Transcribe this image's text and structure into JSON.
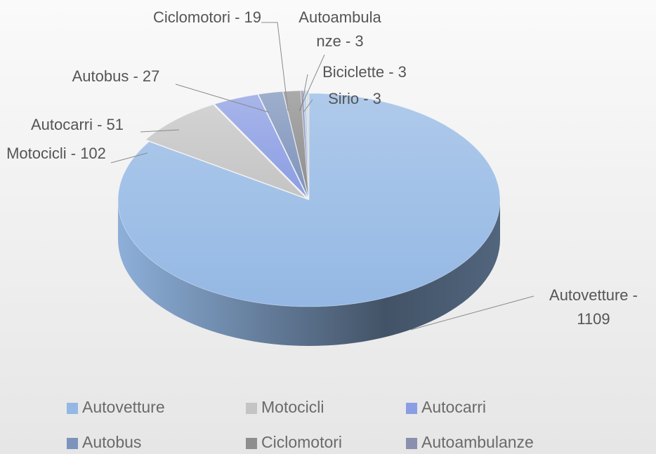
{
  "chart_data": {
    "type": "pie",
    "categories": [
      "Autovetture",
      "Motocicli",
      "Autocarri",
      "Autobus",
      "Ciclomotori",
      "Autoambulanze",
      "Biciclette",
      "Sirio"
    ],
    "values": [
      1109,
      102,
      51,
      27,
      19,
      3,
      3,
      3
    ],
    "value_labels": [
      "Autovetture - 1109",
      "Motocicli - 102",
      "Autocarri - 51",
      "Autobus - 27",
      "Ciclomotori - 19",
      "Autoambulanze - 3",
      "Biciclette - 3",
      "Sirio - 3"
    ],
    "colors": [
      "#94b8e4",
      "#c4c4c4",
      "#8b9de3",
      "#7e93bb",
      "#8e8e8e",
      "#8a8fad",
      "#a9c6ea",
      "#d4d4d4"
    ],
    "legend": "bottom"
  }
}
